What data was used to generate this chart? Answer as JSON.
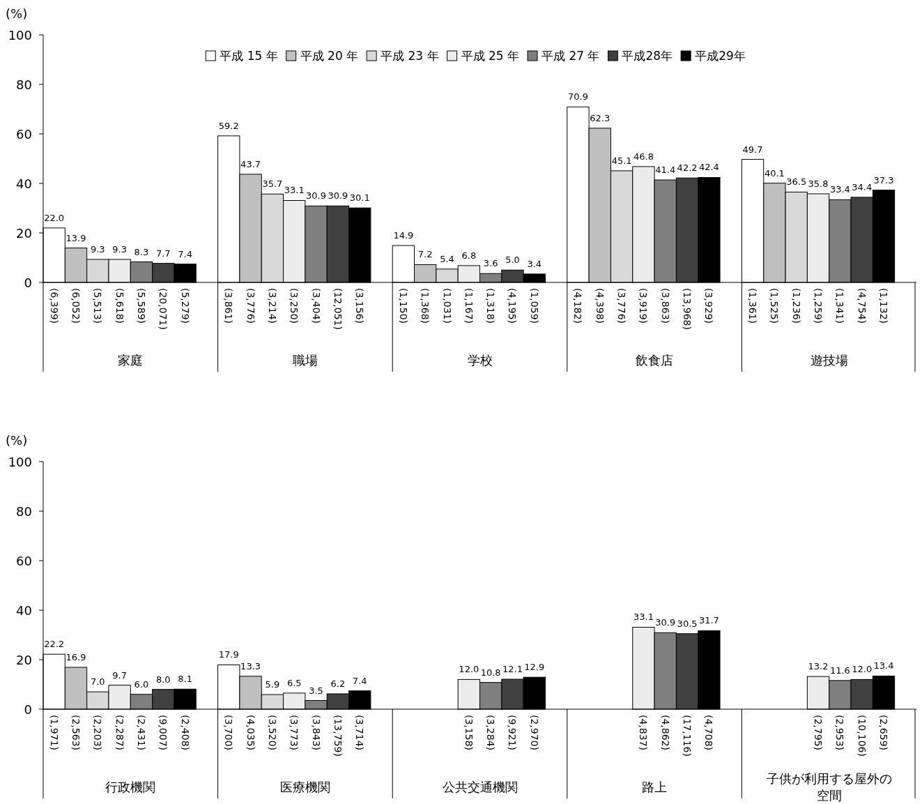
{
  "chart_data": [
    {
      "type": "bar",
      "ylabel": "(%)",
      "categories": [
        "家庭",
        "職場",
        "学校",
        "飲食店",
        "遊技場"
      ],
      "ylim": [
        0,
        100
      ],
      "yticks": [
        0,
        20,
        40,
        60,
        80,
        100
      ],
      "grid": false,
      "legend": "top",
      "series": [
        {
          "name": "平成 15 年",
          "color": "#ffffff",
          "values": [
            22.0,
            59.2,
            14.9,
            70.9,
            49.7
          ],
          "value_labels": [
            "22.0",
            "59.2",
            "14.9",
            "70.9",
            "49.7"
          ]
        },
        {
          "name": "平成 20 年",
          "color": "#c0c0c0",
          "values": [
            13.9,
            43.7,
            7.2,
            62.3,
            40.1
          ],
          "value_labels": [
            "13.9",
            "43.7",
            "7.2",
            "62.3",
            "40.1"
          ]
        },
        {
          "name": "平成 23 年",
          "color": "#d9d9d9",
          "values": [
            9.3,
            35.7,
            5.4,
            45.1,
            36.5
          ],
          "value_labels": [
            "9.3",
            "35.7",
            "5.4",
            "45.1",
            "36.5"
          ]
        },
        {
          "name": "平成 25 年",
          "color": "#ececec",
          "values": [
            9.3,
            33.1,
            6.8,
            46.8,
            35.8
          ],
          "value_labels": [
            "9.3",
            "33.1",
            "6.8",
            "46.8",
            "35.8"
          ]
        },
        {
          "name": "平成 27 年",
          "color": "#7f7f7f",
          "values": [
            8.3,
            30.9,
            3.6,
            41.4,
            33.4
          ],
          "value_labels": [
            "8.3",
            "30.9",
            "3.6",
            "41.4",
            "33.4"
          ]
        },
        {
          "name": "平成28年",
          "color": "#404040",
          "values": [
            7.7,
            30.9,
            5.0,
            42.2,
            34.4
          ],
          "value_labels": [
            "7.7",
            "30.9",
            "5.0",
            "42.2",
            "34.4"
          ]
        },
        {
          "name": "平成29年",
          "color": "#000000",
          "values": [
            7.4,
            30.1,
            3.4,
            42.4,
            37.3
          ],
          "value_labels": [
            "7.4",
            "30.1",
            "3.4",
            "42.4",
            "37.3"
          ]
        }
      ],
      "annotations": [
        "(6,399)",
        "(6,052)",
        "(5,513)",
        "(5,618)",
        "(5,589)",
        "(20,071)",
        "(5,279)",
        "(3,861)",
        "(3,776)",
        "(3,214)",
        "(3,250)",
        "(3,404)",
        "(12,051)",
        "(3,156)",
        "(1,150)",
        "(1,368)",
        "(1,031)",
        "(1,167)",
        "(1,318)",
        "(4,195)",
        "(1,059)",
        "(4,182)",
        "(4,398)",
        "(3,776)",
        "(3,919)",
        "(3,863)",
        "(13,968)",
        "(3,929)",
        "(1,361)",
        "(1,525)",
        "(1,236)",
        "(1,259)",
        "(1,341)",
        "(4,754)",
        "(1,132)"
      ]
    },
    {
      "type": "bar",
      "ylabel": "(%)",
      "categories": [
        "行政機関",
        "医療機関",
        "公共交通機関",
        "路上",
        "子供が利用する屋外の空間"
      ],
      "ylim": [
        0,
        100
      ],
      "yticks": [
        0,
        20,
        40,
        60,
        80,
        100
      ],
      "grid": false,
      "legend": false,
      "series": [
        {
          "color": "#ffffff",
          "values": [
            22.2,
            17.9,
            null,
            null,
            null
          ],
          "value_labels": [
            "22.2",
            "17.9",
            null,
            null,
            null
          ]
        },
        {
          "color": "#c0c0c0",
          "values": [
            16.9,
            13.3,
            null,
            null,
            null
          ],
          "value_labels": [
            "16.9",
            "13.3",
            null,
            null,
            null
          ]
        },
        {
          "color": "#d9d9d9",
          "values": [
            7.0,
            5.9,
            null,
            null,
            null
          ],
          "value_labels": [
            "7.0",
            "5.9",
            null,
            null,
            null
          ]
        },
        {
          "color": "#ececec",
          "values": [
            9.7,
            6.5,
            12.0,
            33.1,
            13.2
          ],
          "value_labels": [
            "9.7",
            "6.5",
            "12.0",
            "33.1",
            "13.2"
          ]
        },
        {
          "color": "#7f7f7f",
          "values": [
            6.0,
            3.5,
            10.8,
            30.9,
            11.6
          ],
          "value_labels": [
            "6.0",
            "3.5",
            "10.8",
            "30.9",
            "11.6"
          ]
        },
        {
          "color": "#404040",
          "values": [
            8.0,
            6.2,
            12.1,
            30.5,
            12.0
          ],
          "value_labels": [
            "8.0",
            "6.2",
            "12.1",
            "30.5",
            "12.0"
          ]
        },
        {
          "color": "#000000",
          "values": [
            8.1,
            7.4,
            12.9,
            31.7,
            13.4
          ],
          "value_labels": [
            "8.1",
            "7.4",
            "12.9",
            "31.7",
            "13.4"
          ]
        }
      ],
      "annotations": [
        "(1,971)",
        "(2,563)",
        "(2,203)",
        "(2,287)",
        "(2,431)",
        "(9,007)",
        "(2,408)",
        "(3,700)",
        "(4,035)",
        "(3,520)",
        "(3,773)",
        "(3,843)",
        "(13,759)",
        "(3,714)",
        "(3,158)",
        "(3,284)",
        "(9,921)",
        "(2,970)",
        "(4,837)",
        "(4,862)",
        "(17,116)",
        "(4,708)",
        "(2,795)",
        "(2,953)",
        "(10,106)",
        "(2,659)"
      ]
    }
  ]
}
